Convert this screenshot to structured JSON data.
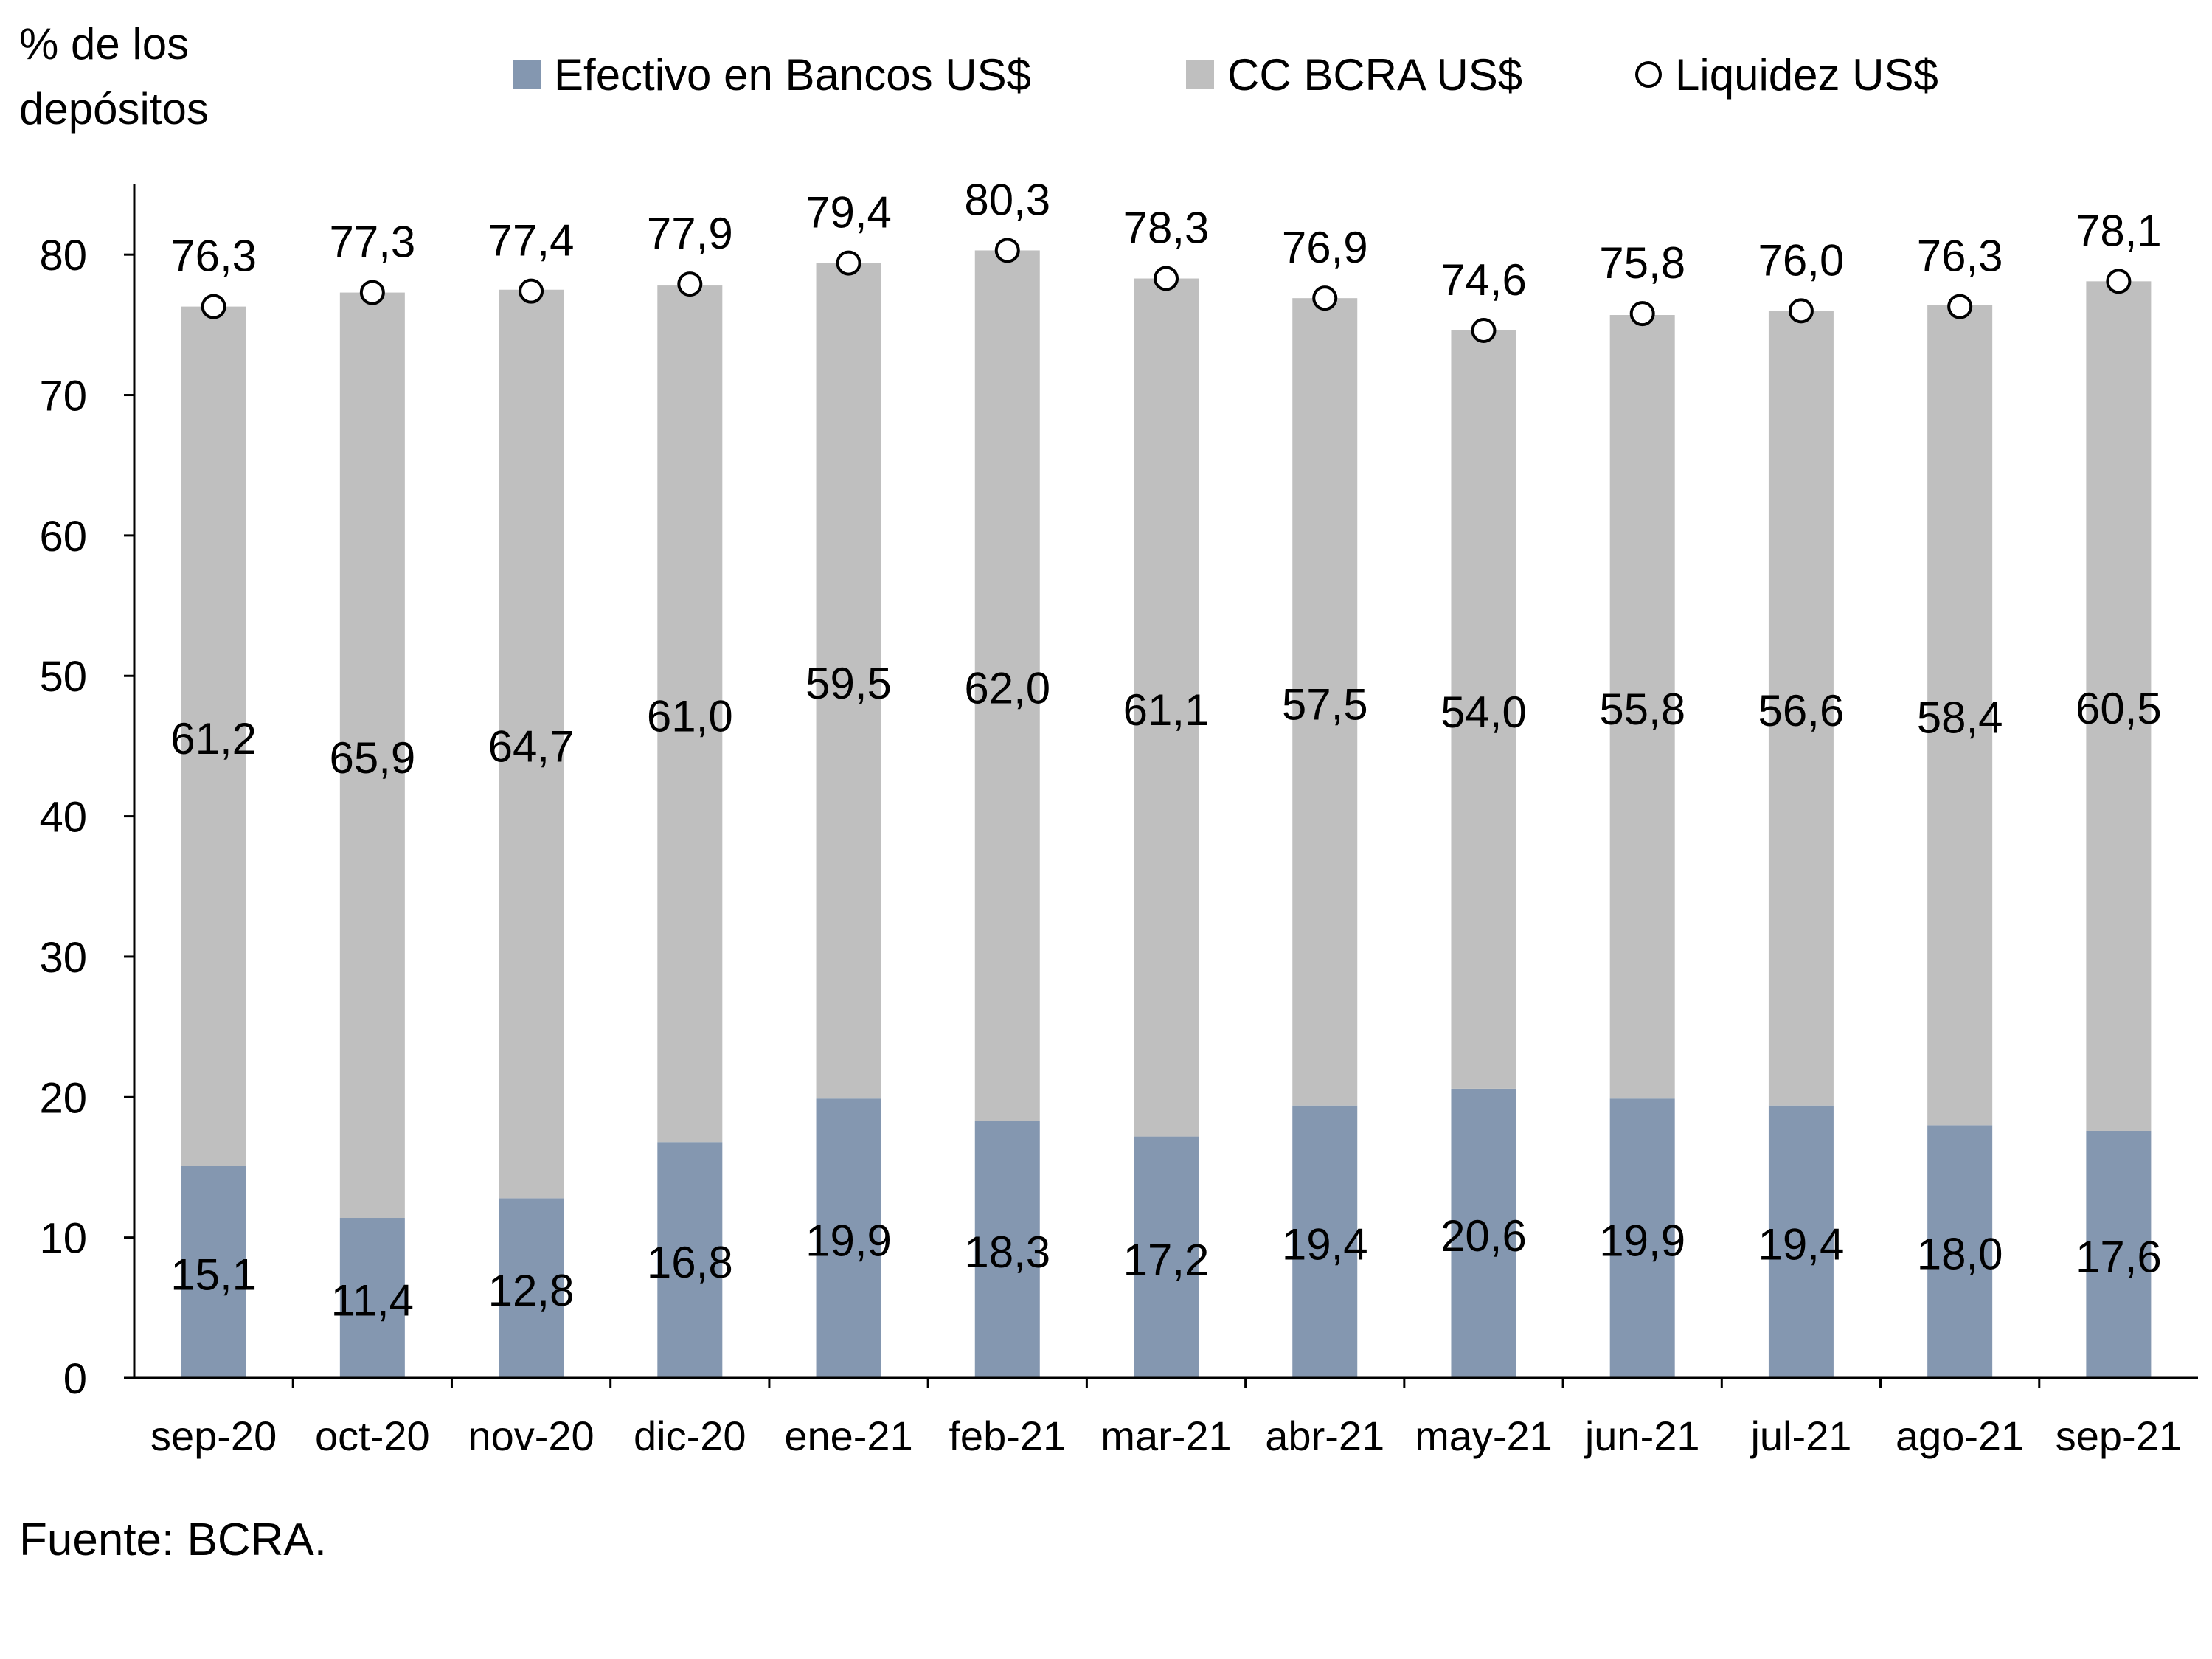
{
  "chart_data": {
    "type": "bar",
    "stacked": true,
    "ylabel": "% de los depósitos",
    "ylabel_lines": [
      "% de los",
      "depósitos"
    ],
    "ylim": [
      0,
      85
    ],
    "yticks": [
      0,
      10,
      20,
      30,
      40,
      50,
      60,
      70,
      80
    ],
    "grid": false,
    "legend_position": "top",
    "categories": [
      "sep-20",
      "oct-20",
      "nov-20",
      "dic-20",
      "ene-21",
      "feb-21",
      "mar-21",
      "abr-21",
      "may-21",
      "jun-21",
      "jul-21",
      "ago-21",
      "sep-21"
    ],
    "series": [
      {
        "name": "Efectivo en Bancos US$",
        "kind": "bar",
        "color": "#8497B0",
        "values": [
          15.1,
          11.4,
          12.8,
          16.8,
          19.9,
          18.3,
          17.2,
          19.4,
          20.6,
          19.9,
          19.4,
          18.0,
          17.6
        ],
        "labels": [
          "15,1",
          "11,4",
          "12,8",
          "16,8",
          "19,9",
          "18,3",
          "17,2",
          "19,4",
          "20,6",
          "19,9",
          "19,4",
          "18,0",
          "17,6"
        ]
      },
      {
        "name": "CC BCRA US$",
        "kind": "bar",
        "color": "#BFBFBF",
        "values": [
          61.2,
          65.9,
          64.7,
          61.0,
          59.5,
          62.0,
          61.1,
          57.5,
          54.0,
          55.8,
          56.6,
          58.4,
          60.5
        ],
        "labels": [
          "61,2",
          "65,9",
          "64,7",
          "61,0",
          "59,5",
          "62,0",
          "61,1",
          "57,5",
          "54,0",
          "55,8",
          "56,6",
          "58,4",
          "60,5"
        ]
      },
      {
        "name": "Liquidez US$",
        "kind": "marker",
        "color": "#FFFFFF",
        "values": [
          76.3,
          77.3,
          77.4,
          77.9,
          79.4,
          80.3,
          78.3,
          76.9,
          74.6,
          75.8,
          76.0,
          76.3,
          78.1
        ],
        "labels": [
          "76,3",
          "77,3",
          "77,4",
          "77,9",
          "79,4",
          "80,3",
          "78,3",
          "76,9",
          "74,6",
          "75,8",
          "76,0",
          "76,3",
          "78,1"
        ]
      }
    ],
    "source": "Fuente: BCRA."
  }
}
